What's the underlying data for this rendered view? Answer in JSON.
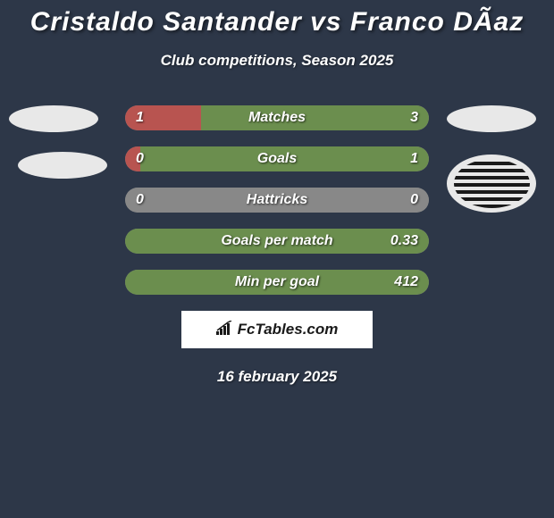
{
  "title": "Cristaldo Santander vs Franco DÃ­az",
  "subtitle": "Club competitions, Season 2025",
  "date": "16 february 2025",
  "brand": "FcTables.com",
  "background_color": "#2d3748",
  "colors": {
    "left_player": "#b85450",
    "right_player": "#6b8e4e",
    "neutral": "#888888"
  },
  "stats": [
    {
      "label": "Matches",
      "left_value": "1",
      "right_value": "3",
      "left_pct": 25,
      "right_pct": 75
    },
    {
      "label": "Goals",
      "left_value": "0",
      "right_value": "1",
      "left_pct": 5,
      "right_pct": 95
    },
    {
      "label": "Hattricks",
      "left_value": "0",
      "right_value": "0",
      "left_pct": 50,
      "right_pct": 50
    },
    {
      "label": "Goals per match",
      "left_value": "",
      "right_value": "0.33",
      "left_pct": 0,
      "right_pct": 100
    },
    {
      "label": "Min per goal",
      "left_value": "",
      "right_value": "412",
      "left_pct": 0,
      "right_pct": 100
    }
  ]
}
